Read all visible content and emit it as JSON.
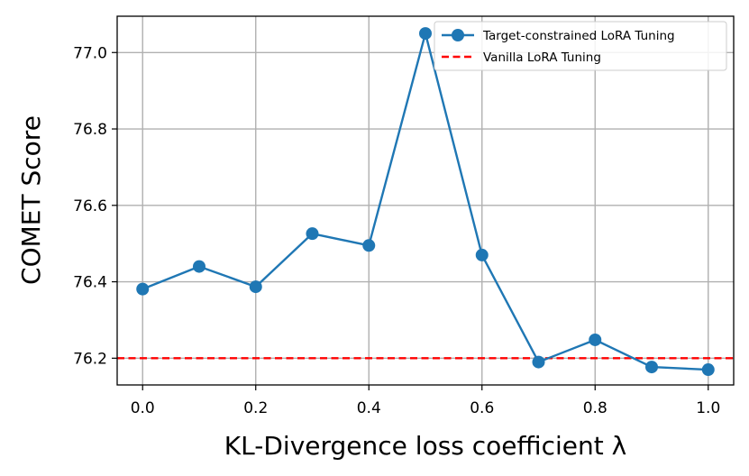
{
  "chart_data": {
    "type": "line",
    "title": "",
    "xlabel": "KL-Divergence loss coefficient λ",
    "ylabel": "COMET Score",
    "xlim": [
      -0.045,
      1.045
    ],
    "ylim": [
      76.13,
      77.095
    ],
    "grid": true,
    "legend_position": "top-right",
    "x_ticks": [
      0.0,
      0.2,
      0.4,
      0.6,
      0.8,
      1.0
    ],
    "x_tick_labels": [
      "0.0",
      "0.2",
      "0.4",
      "0.6",
      "0.8",
      "1.0"
    ],
    "y_ticks": [
      76.2,
      76.4,
      76.6,
      76.8,
      77.0
    ],
    "y_tick_labels": [
      "76.2",
      "76.4",
      "76.6",
      "76.8",
      "77.0"
    ],
    "series": [
      {
        "name": "Target-constrained LoRA Tuning",
        "color": "#1f77b4",
        "style": "line-marker",
        "x": [
          0.0,
          0.1,
          0.2,
          0.3,
          0.4,
          0.5,
          0.6,
          0.7,
          0.8,
          0.9,
          1.0
        ],
        "values": [
          76.381,
          76.44,
          76.387,
          76.526,
          76.495,
          77.05,
          76.47,
          76.19,
          76.248,
          76.177,
          76.17
        ]
      }
    ],
    "reference_lines": [
      {
        "name": "Vanilla LoRA Tuning",
        "color": "#ff0000",
        "style": "dashed",
        "y": 76.2
      }
    ]
  }
}
